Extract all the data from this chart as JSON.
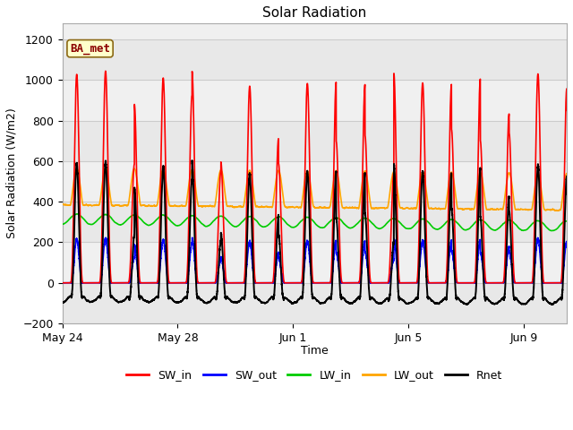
{
  "title": "Solar Radiation",
  "ylabel": "Solar Radiation (W/m2)",
  "xlabel": "Time",
  "ylim": [
    -200,
    1280
  ],
  "yticks": [
    -200,
    0,
    200,
    400,
    600,
    800,
    1000,
    1200
  ],
  "days_total": 17.5,
  "n_points": 8640,
  "label_text": "BA_met",
  "fig_bg_color": "#ffffff",
  "plot_bg_color": "#f0f0f0",
  "series": {
    "SW_in": {
      "color": "#ff0000",
      "lw": 1.2
    },
    "SW_out": {
      "color": "#0000ff",
      "lw": 1.2
    },
    "LW_in": {
      "color": "#00cc00",
      "lw": 1.2
    },
    "LW_out": {
      "color": "#ffa500",
      "lw": 1.2
    },
    "Rnet": {
      "color": "#000000",
      "lw": 1.4
    }
  },
  "x_tick_labels": [
    "May 24",
    "May 28",
    "Jun 1",
    "Jun 5",
    "Jun 9"
  ],
  "x_tick_positions": [
    0,
    4,
    8,
    12,
    16
  ],
  "grid_color": "#cccccc",
  "band_color": "#e8e8e8"
}
